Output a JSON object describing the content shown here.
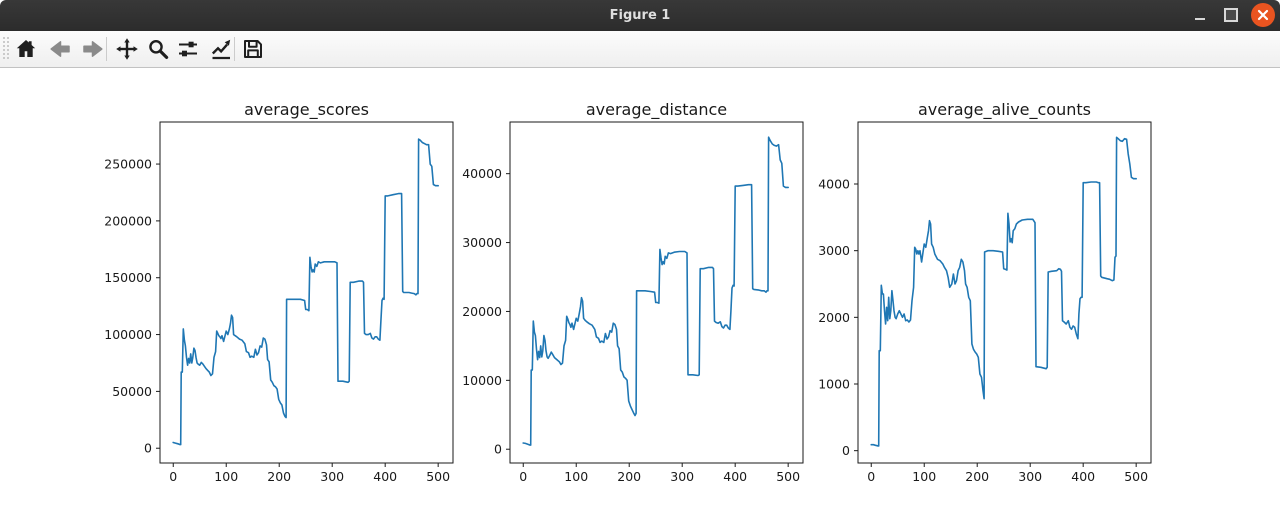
{
  "window": {
    "title": "Figure 1",
    "titlebar_color": "#303030",
    "close_button_color": "#e95420"
  },
  "toolbar": {
    "icons": [
      "home",
      "back",
      "forward",
      "pan",
      "zoom",
      "configure-subplots",
      "edit-parameters",
      "save"
    ],
    "icon_color": "#1f1f1f",
    "disabled_icon_color": "#8a8a8a"
  },
  "chart_data": {
    "type": "line",
    "line_color": "#1f77b4",
    "x_ticks": [
      0,
      100,
      200,
      300,
      400,
      500
    ],
    "xlim": [
      -25,
      528
    ],
    "grid": false,
    "legend": "none",
    "x": [
      0,
      4,
      8,
      11,
      13,
      14,
      15,
      17,
      19,
      21,
      23,
      25,
      27,
      29,
      31,
      33,
      35,
      37,
      39,
      41,
      43,
      45,
      47,
      50,
      53,
      56,
      59,
      62,
      65,
      68,
      71,
      74,
      77,
      80,
      82,
      84,
      86,
      88,
      90,
      92,
      95,
      100,
      103,
      106,
      108,
      110,
      112,
      114,
      117,
      120,
      125,
      130,
      135,
      138,
      142,
      145,
      148,
      152,
      155,
      158,
      161,
      164,
      167,
      170,
      173,
      176,
      178,
      181,
      184,
      187,
      190,
      193,
      196,
      199,
      202,
      205,
      208,
      211,
      213,
      214,
      220,
      230,
      240,
      248,
      250,
      253,
      256,
      258,
      260,
      262,
      264,
      266,
      268,
      271,
      274,
      278,
      285,
      295,
      305,
      309,
      311,
      320,
      330,
      332,
      334,
      340,
      350,
      354,
      357,
      359,
      361,
      364,
      368,
      372,
      375,
      378,
      381,
      384,
      387,
      390,
      392,
      394,
      396,
      398,
      400,
      405,
      415,
      425,
      429,
      431,
      433,
      435,
      445,
      450,
      455,
      458,
      460,
      462,
      463,
      466,
      470,
      474,
      478,
      482,
      485,
      488,
      491,
      495,
      500
    ],
    "charts": [
      {
        "title": "average_scores",
        "y_ticks": [
          0,
          50000,
          100000,
          150000,
          200000,
          250000
        ],
        "ylim": [
          -13000,
          287000
        ],
        "values": [
          5000,
          4500,
          4000,
          3500,
          3200,
          3200,
          67000,
          67000,
          105000,
          95000,
          90000,
          80000,
          73000,
          79000,
          75000,
          83000,
          75000,
          80000,
          88000,
          86000,
          80000,
          75000,
          74000,
          73000,
          75500,
          74000,
          72000,
          70000,
          68500,
          67000,
          64000,
          65500,
          80000,
          85000,
          103000,
          101000,
          99000,
          98000,
          96500,
          99000,
          94000,
          103000,
          100000,
          105000,
          110000,
          117000,
          115000,
          100000,
          99000,
          98000,
          96000,
          95000,
          92000,
          85000,
          84000,
          80000,
          81000,
          80000,
          87000,
          82000,
          84000,
          90000,
          89000,
          97000,
          96000,
          91000,
          78000,
          76000,
          60000,
          58000,
          55000,
          54000,
          52000,
          43000,
          40000,
          38000,
          31000,
          28000,
          27000,
          131000,
          131000,
          131000,
          131000,
          130000,
          122000,
          122000,
          121000,
          168000,
          160000,
          155000,
          157000,
          155000,
          162000,
          160000,
          164000,
          163000,
          164000,
          164000,
          164000,
          163000,
          59000,
          59000,
          58000,
          59000,
          146000,
          146000,
          147000,
          147000,
          147000,
          146000,
          101000,
          100000,
          100000,
          101000,
          97000,
          96000,
          98000,
          98000,
          96000,
          95000,
          112000,
          130000,
          132000,
          131000,
          222000,
          222000,
          223000,
          224000,
          224000,
          224000,
          138000,
          137000,
          137000,
          136500,
          136000,
          135000,
          136000,
          136000,
          272000,
          271000,
          269000,
          268000,
          267000,
          267000,
          250000,
          248000,
          232000,
          231000,
          231000
        ]
      },
      {
        "title": "average_distance",
        "y_ticks": [
          0,
          10000,
          20000,
          30000,
          40000
        ],
        "ylim": [
          -2000,
          47500
        ],
        "values": [
          900,
          850,
          750,
          650,
          600,
          600,
          11500,
          11500,
          18600,
          17000,
          16500,
          14500,
          13000,
          14200,
          13300,
          15000,
          13400,
          14300,
          16500,
          15800,
          14300,
          13400,
          13200,
          13600,
          14100,
          13700,
          13300,
          13100,
          12900,
          12700,
          12300,
          12500,
          15000,
          15800,
          19300,
          18900,
          18400,
          18100,
          17700,
          18300,
          17400,
          19000,
          18600,
          19800,
          20700,
          22000,
          21500,
          19000,
          18700,
          18500,
          18200,
          18000,
          17400,
          16300,
          16100,
          15500,
          15700,
          15500,
          16800,
          16000,
          16300,
          17200,
          17000,
          18300,
          18100,
          17400,
          15000,
          14600,
          11500,
          11200,
          10500,
          10300,
          10000,
          7000,
          6300,
          5800,
          5300,
          4900,
          5200,
          23000,
          23000,
          23000,
          22900,
          22800,
          21300,
          21300,
          21200,
          29000,
          27800,
          26800,
          27200,
          26900,
          28000,
          27700,
          28500,
          28400,
          28600,
          28700,
          28700,
          28500,
          10800,
          10800,
          10700,
          10800,
          26200,
          26200,
          26400,
          26400,
          26400,
          26200,
          18600,
          18400,
          18300,
          18500,
          17800,
          17600,
          18000,
          18000,
          17600,
          17400,
          20000,
          23400,
          23800,
          23700,
          38200,
          38200,
          38300,
          38400,
          38400,
          38400,
          23300,
          23200,
          23100,
          23000,
          23000,
          22800,
          23000,
          23000,
          45300,
          44800,
          44300,
          44100,
          44000,
          44200,
          42000,
          41500,
          38200,
          38000,
          38000
        ]
      },
      {
        "title": "average_alive_counts",
        "y_ticks": [
          0,
          1000,
          2000,
          3000,
          4000
        ],
        "ylim": [
          -185,
          4930
        ],
        "values": [
          90,
          90,
          80,
          75,
          70,
          70,
          1500,
          1500,
          2480,
          2350,
          2350,
          2100,
          1900,
          2150,
          1950,
          2300,
          1980,
          2100,
          2400,
          2250,
          2100,
          2000,
          1980,
          2050,
          2100,
          2050,
          2000,
          2050,
          1950,
          1960,
          1930,
          1960,
          2250,
          2450,
          3050,
          3020,
          2950,
          3000,
          2950,
          3000,
          2830,
          3100,
          3050,
          3200,
          3300,
          3450,
          3400,
          3100,
          3050,
          2950,
          2870,
          2850,
          2800,
          2750,
          2700,
          2600,
          2450,
          2500,
          2650,
          2500,
          2550,
          2700,
          2750,
          2870,
          2830,
          2700,
          2500,
          2450,
          2300,
          2250,
          1600,
          1520,
          1480,
          1450,
          1400,
          1150,
          1100,
          900,
          780,
          2980,
          3000,
          3000,
          2990,
          2980,
          2730,
          2720,
          2710,
          3560,
          3400,
          3130,
          3180,
          3120,
          3300,
          3330,
          3400,
          3430,
          3460,
          3470,
          3470,
          3420,
          1260,
          1250,
          1230,
          1250,
          2680,
          2690,
          2700,
          2730,
          2720,
          2690,
          1950,
          1930,
          1900,
          1950,
          1850,
          1820,
          1870,
          1850,
          1750,
          1680,
          2050,
          2280,
          2300,
          2300,
          4020,
          4020,
          4030,
          4030,
          4020,
          4020,
          2620,
          2600,
          2580,
          2570,
          2550,
          2560,
          2900,
          2920,
          4700,
          4680,
          4650,
          4640,
          4680,
          4670,
          4450,
          4300,
          4100,
          4080,
          4080
        ]
      }
    ]
  }
}
